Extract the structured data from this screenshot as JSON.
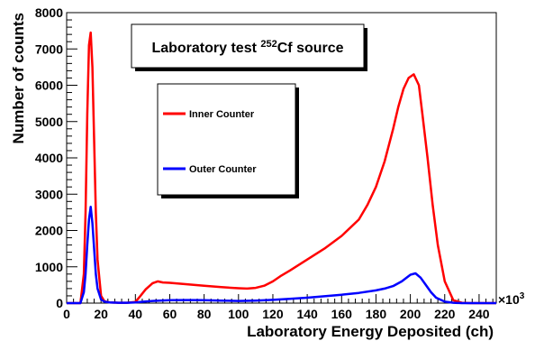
{
  "chart_data": {
    "type": "line",
    "title_parts": [
      "Laboratory test ",
      "252",
      "Cf source"
    ],
    "xlabel": "Laboratory Energy Deposited (ch)",
    "ylabel": "Number of counts",
    "x_multiplier_label": "×10",
    "x_multiplier_exp": "3",
    "xlim": [
      0,
      250
    ],
    "ylim": [
      0,
      8000
    ],
    "x_ticks": [
      0,
      20,
      40,
      60,
      80,
      100,
      120,
      140,
      160,
      180,
      200,
      220,
      240
    ],
    "y_ticks": [
      0,
      1000,
      2000,
      3000,
      4000,
      5000,
      6000,
      7000,
      8000
    ],
    "grid": false,
    "legend_position": "upper-left",
    "series": [
      {
        "name": "Inner Counter",
        "color": "#ff0000",
        "x": [
          0,
          8,
          10,
          11,
          12,
          13,
          14,
          15,
          16,
          17,
          18,
          20,
          22,
          25,
          30,
          35,
          40,
          43,
          46,
          50,
          53,
          56,
          60,
          70,
          80,
          90,
          100,
          105,
          110,
          115,
          120,
          125,
          130,
          140,
          150,
          160,
          170,
          175,
          180,
          185,
          190,
          193,
          196,
          199,
          202,
          205,
          207,
          210,
          213,
          216,
          220,
          225,
          230,
          235,
          250
        ],
        "y": [
          0,
          0,
          800,
          2500,
          5200,
          7100,
          7450,
          6500,
          4500,
          2500,
          1200,
          200,
          50,
          20,
          10,
          10,
          30,
          200,
          380,
          550,
          600,
          570,
          560,
          520,
          480,
          440,
          410,
          400,
          420,
          480,
          600,
          760,
          900,
          1200,
          1500,
          1850,
          2300,
          2700,
          3200,
          3900,
          4800,
          5400,
          5900,
          6200,
          6300,
          6000,
          5200,
          4000,
          2700,
          1600,
          600,
          80,
          10,
          0,
          0
        ]
      },
      {
        "name": "Outer Counter",
        "color": "#0000ff",
        "x": [
          0,
          8,
          10,
          11,
          12,
          13,
          14,
          15,
          16,
          17,
          18,
          20,
          22,
          25,
          30,
          35,
          40,
          45,
          50,
          60,
          70,
          80,
          90,
          100,
          110,
          120,
          130,
          140,
          150,
          160,
          170,
          180,
          185,
          190,
          195,
          200,
          203,
          206,
          209,
          212,
          215,
          220,
          225,
          230,
          250
        ],
        "y": [
          0,
          0,
          300,
          800,
          1600,
          2300,
          2650,
          2200,
          1500,
          800,
          400,
          100,
          40,
          20,
          10,
          10,
          20,
          40,
          60,
          80,
          85,
          80,
          70,
          60,
          70,
          90,
          120,
          150,
          190,
          230,
          280,
          350,
          400,
          470,
          600,
          780,
          820,
          700,
          500,
          300,
          150,
          40,
          10,
          0,
          0
        ]
      }
    ]
  }
}
